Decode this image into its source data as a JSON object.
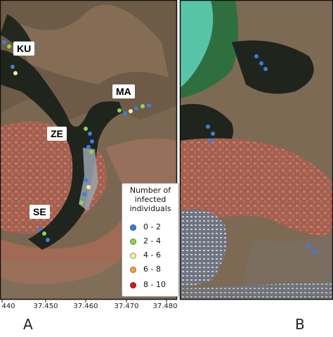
{
  "panel_a": {
    "labels": [
      "KU",
      "MA",
      "ZE",
      "SE"
    ],
    "letter": "A",
    "x_ticks": [
      "440",
      "37.450",
      "37.460",
      "37.470",
      "37.480"
    ]
  },
  "panel_b": {
    "letter": "B"
  },
  "legend": {
    "title_lines": [
      "Number of",
      "infected",
      "individuals"
    ],
    "items": [
      {
        "label": "0 - 2",
        "color": "#3b7ddd"
      },
      {
        "label": "2 - 4",
        "color": "#8fd14f"
      },
      {
        "label": "4 - 6",
        "color": "#f2ef9a"
      },
      {
        "label": "6 - 8",
        "color": "#f2a347"
      },
      {
        "label": "8 - 10",
        "color": "#d7191c"
      }
    ]
  },
  "colors": {
    "urban_red": "#a9604f",
    "terrain_brown": "#7d6a54",
    "vegetation_dark": "#1f241c",
    "water_teal": "#57c4a7",
    "frame": "#111111"
  }
}
